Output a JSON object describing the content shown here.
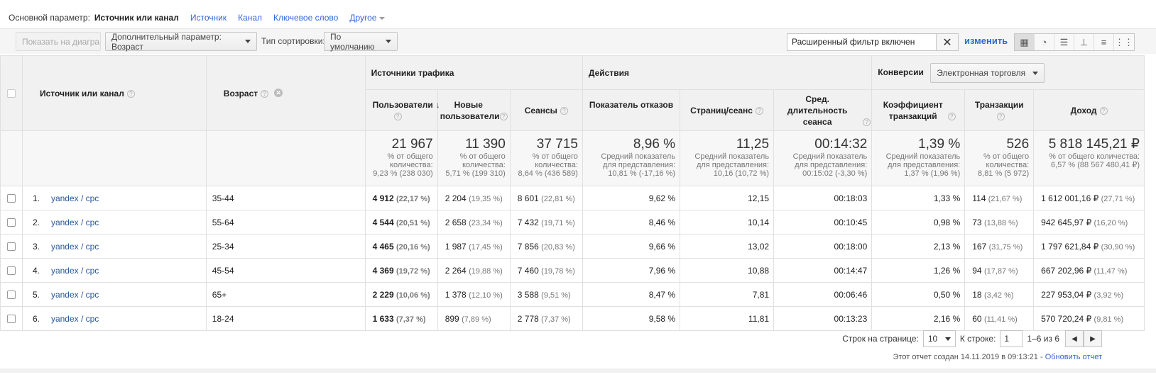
{
  "primary": {
    "label": "Основной параметр:",
    "active": "Источник или канал",
    "links": [
      "Источник",
      "Канал",
      "Ключевое слово",
      "Другое"
    ]
  },
  "toolbar": {
    "plot_btn": "Показать на диаграмме",
    "secondary_dim": "Дополнительный параметр: Возраст",
    "sort_label": "Тип сортировки:",
    "sort_value": "По умолчанию",
    "filter_text": "Расширенный фильтр включен",
    "change_link": "изменить",
    "view_icons": [
      "table-view-icon",
      "pie-view-icon",
      "performance-view-icon",
      "comparison-view-icon",
      "term-cloud-view-icon",
      "pivot-view-icon"
    ]
  },
  "table": {
    "col_source": "Источник или канал",
    "col_age": "Возраст",
    "group_traffic": "Источники трафика",
    "group_actions": "Действия",
    "group_conversions": "Конверсии",
    "conversions_select": "Электронная торговля",
    "columns": [
      "Пользователи",
      "Новые пользователи",
      "Сеансы",
      "Показатель отказов",
      "Страниц/сеанс",
      "Сред. длительность сеанса",
      "Коэффициент транзакций",
      "Транзакции",
      "Доход"
    ],
    "totals": [
      {
        "value": "21 967",
        "sub1": "% от общего",
        "sub2": "количества:",
        "sub3": "9,23 % (238 030)"
      },
      {
        "value": "11 390",
        "sub1": "% от общего",
        "sub2": "количества:",
        "sub3": "5,71 % (199 310)"
      },
      {
        "value": "37 715",
        "sub1": "% от общего",
        "sub2": "количества:",
        "sub3": "8,64 % (436 589)"
      },
      {
        "value": "8,96 %",
        "sub1": "Средний показатель",
        "sub2": "для представления:",
        "sub3": "10,81 % (-17,16 %)"
      },
      {
        "value": "11,25",
        "sub1": "Средний показатель",
        "sub2": "для представления:",
        "sub3": "10,16 (10,72 %)"
      },
      {
        "value": "00:14:32",
        "sub1": "Средний показатель",
        "sub2": "для представления:",
        "sub3": "00:15:02 (-3,30 %)"
      },
      {
        "value": "1,39 %",
        "sub1": "Средний показатель",
        "sub2": "для представления:",
        "sub3": "1,37 % (1,96 %)"
      },
      {
        "value": "526",
        "sub1": "% от общего",
        "sub2": "количества:",
        "sub3": "8,81 % (5 972)"
      },
      {
        "value": "5 818 145,21 ₽",
        "sub1": "% от общего количества:",
        "sub2": "6,57 % (88 567 480,41 ₽)",
        "sub3": ""
      }
    ],
    "rows": [
      {
        "idx": "1.",
        "source": "yandex / cpc",
        "age": "35-44",
        "users": "4 912",
        "users_pct": "(22,17 %)",
        "new": "2 204",
        "new_pct": "(19,35 %)",
        "sessions": "8 601",
        "sessions_pct": "(22,81 %)",
        "bounce": "9,62 %",
        "pages": "12,15",
        "duration": "00:18:03",
        "conv": "1,33 %",
        "trans": "114",
        "trans_pct": "(21,67 %)",
        "revenue": "1 612 001,16 ₽",
        "revenue_pct": "(27,71 %)"
      },
      {
        "idx": "2.",
        "source": "yandex / cpc",
        "age": "55-64",
        "users": "4 544",
        "users_pct": "(20,51 %)",
        "new": "2 658",
        "new_pct": "(23,34 %)",
        "sessions": "7 432",
        "sessions_pct": "(19,71 %)",
        "bounce": "8,46 %",
        "pages": "10,14",
        "duration": "00:10:45",
        "conv": "0,98 %",
        "trans": "73",
        "trans_pct": "(13,88 %)",
        "revenue": "942 645,97 ₽",
        "revenue_pct": "(16,20 %)"
      },
      {
        "idx": "3.",
        "source": "yandex / cpc",
        "age": "25-34",
        "users": "4 465",
        "users_pct": "(20,16 %)",
        "new": "1 987",
        "new_pct": "(17,45 %)",
        "sessions": "7 856",
        "sessions_pct": "(20,83 %)",
        "bounce": "9,66 %",
        "pages": "13,02",
        "duration": "00:18:00",
        "conv": "2,13 %",
        "trans": "167",
        "trans_pct": "(31,75 %)",
        "revenue": "1 797 621,84 ₽",
        "revenue_pct": "(30,90 %)"
      },
      {
        "idx": "4.",
        "source": "yandex / cpc",
        "age": "45-54",
        "users": "4 369",
        "users_pct": "(19,72 %)",
        "new": "2 264",
        "new_pct": "(19,88 %)",
        "sessions": "7 460",
        "sessions_pct": "(19,78 %)",
        "bounce": "7,96 %",
        "pages": "10,88",
        "duration": "00:14:47",
        "conv": "1,26 %",
        "trans": "94",
        "trans_pct": "(17,87 %)",
        "revenue": "667 202,96 ₽",
        "revenue_pct": "(11,47 %)"
      },
      {
        "idx": "5.",
        "source": "yandex / cpc",
        "age": "65+",
        "users": "2 229",
        "users_pct": "(10,06 %)",
        "new": "1 378",
        "new_pct": "(12,10 %)",
        "sessions": "3 588",
        "sessions_pct": "(9,51 %)",
        "bounce": "8,47 %",
        "pages": "7,81",
        "duration": "00:06:46",
        "conv": "0,50 %",
        "trans": "18",
        "trans_pct": "(3,42 %)",
        "revenue": "227 953,04 ₽",
        "revenue_pct": "(3,92 %)"
      },
      {
        "idx": "6.",
        "source": "yandex / cpc",
        "age": "18-24",
        "users": "1 633",
        "users_pct": "(7,37 %)",
        "new": "899",
        "new_pct": "(7,89 %)",
        "sessions": "2 778",
        "sessions_pct": "(7,37 %)",
        "bounce": "9,58 %",
        "pages": "11,81",
        "duration": "00:13:23",
        "conv": "2,16 %",
        "trans": "60",
        "trans_pct": "(11,41 %)",
        "revenue": "570 720,24 ₽",
        "revenue_pct": "(9,81 %)"
      }
    ]
  },
  "pager": {
    "rows_label": "Строк на странице:",
    "rows_value": "10",
    "goto_label": "К строке:",
    "goto_value": "1",
    "range": "1–6 из 6"
  },
  "footer": {
    "created": "Этот отчет создан 14.11.2019 в 09:13:21 - ",
    "refresh": "Обновить отчет"
  }
}
